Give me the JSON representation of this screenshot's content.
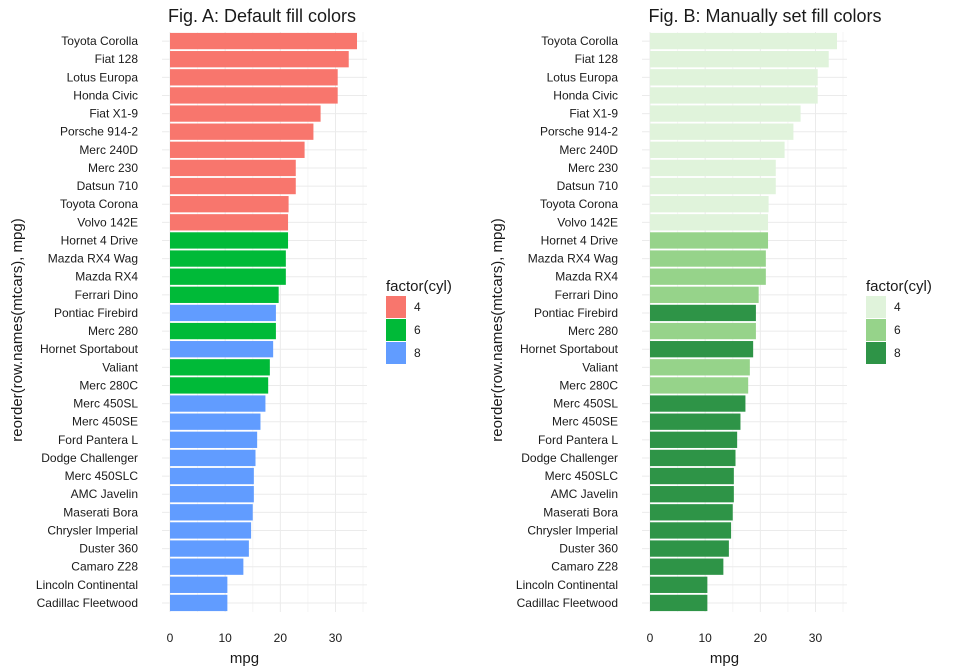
{
  "chart_data": [
    {
      "type": "bar",
      "orientation": "horizontal",
      "title": "Fig. A: Default fill colors",
      "xlabel": "mpg",
      "ylabel": "reorder(row.names(mtcars), mpg)",
      "xlim": [
        0,
        35
      ],
      "xticks": [
        0,
        10,
        20,
        30
      ],
      "legend": {
        "title": "factor(cyl)",
        "position": "right",
        "entries": [
          {
            "label": "4",
            "color": "#F8766D"
          },
          {
            "label": "6",
            "color": "#00BA38"
          },
          {
            "label": "8",
            "color": "#619CFF"
          }
        ]
      },
      "categories": [
        "Toyota Corolla",
        "Fiat 128",
        "Lotus Europa",
        "Honda Civic",
        "Fiat X1-9",
        "Porsche 914-2",
        "Merc 240D",
        "Merc 230",
        "Datsun 710",
        "Toyota Corona",
        "Volvo 142E",
        "Hornet 4 Drive",
        "Mazda RX4 Wag",
        "Mazda RX4",
        "Ferrari Dino",
        "Pontiac Firebird",
        "Merc 280",
        "Hornet Sportabout",
        "Valiant",
        "Merc 280C",
        "Merc 450SL",
        "Merc 450SE",
        "Ford Pantera L",
        "Dodge Challenger",
        "Merc 450SLC",
        "AMC Javelin",
        "Maserati Bora",
        "Chrysler Imperial",
        "Duster 360",
        "Camaro Z28",
        "Lincoln Continental",
        "Cadillac Fleetwood"
      ],
      "values": [
        33.9,
        32.4,
        30.4,
        30.4,
        27.3,
        26.0,
        24.4,
        22.8,
        22.8,
        21.5,
        21.4,
        21.4,
        21.0,
        21.0,
        19.7,
        19.2,
        19.2,
        18.7,
        18.1,
        17.8,
        17.3,
        16.4,
        15.8,
        15.5,
        15.2,
        15.2,
        15.0,
        14.7,
        14.3,
        13.3,
        10.4,
        10.4
      ],
      "groups": [
        "4",
        "4",
        "4",
        "4",
        "4",
        "4",
        "4",
        "4",
        "4",
        "4",
        "4",
        "6",
        "6",
        "6",
        "6",
        "8",
        "6",
        "8",
        "6",
        "6",
        "8",
        "8",
        "8",
        "8",
        "8",
        "8",
        "8",
        "8",
        "8",
        "8",
        "8",
        "8"
      ]
    },
    {
      "type": "bar",
      "orientation": "horizontal",
      "title": "Fig. B: Manually set fill colors",
      "xlabel": "mpg",
      "ylabel": "reorder(row.names(mtcars), mpg)",
      "xlim": [
        0,
        35
      ],
      "xticks": [
        0,
        10,
        20,
        30
      ],
      "legend": {
        "title": "factor(cyl)",
        "position": "right",
        "entries": [
          {
            "label": "4",
            "color": "#E0F3DB"
          },
          {
            "label": "6",
            "color": "#96D38A"
          },
          {
            "label": "8",
            "color": "#2E9447"
          }
        ]
      },
      "categories": [
        "Toyota Corolla",
        "Fiat 128",
        "Lotus Europa",
        "Honda Civic",
        "Fiat X1-9",
        "Porsche 914-2",
        "Merc 240D",
        "Merc 230",
        "Datsun 710",
        "Toyota Corona",
        "Volvo 142E",
        "Hornet 4 Drive",
        "Mazda RX4 Wag",
        "Mazda RX4",
        "Ferrari Dino",
        "Pontiac Firebird",
        "Merc 280",
        "Hornet Sportabout",
        "Valiant",
        "Merc 280C",
        "Merc 450SL",
        "Merc 450SE",
        "Ford Pantera L",
        "Dodge Challenger",
        "Merc 450SLC",
        "AMC Javelin",
        "Maserati Bora",
        "Chrysler Imperial",
        "Duster 360",
        "Camaro Z28",
        "Lincoln Continental",
        "Cadillac Fleetwood"
      ],
      "values": [
        33.9,
        32.4,
        30.4,
        30.4,
        27.3,
        26.0,
        24.4,
        22.8,
        22.8,
        21.5,
        21.4,
        21.4,
        21.0,
        21.0,
        19.7,
        19.2,
        19.2,
        18.7,
        18.1,
        17.8,
        17.3,
        16.4,
        15.8,
        15.5,
        15.2,
        15.2,
        15.0,
        14.7,
        14.3,
        13.3,
        10.4,
        10.4
      ],
      "groups": [
        "4",
        "4",
        "4",
        "4",
        "4",
        "4",
        "4",
        "4",
        "4",
        "4",
        "4",
        "6",
        "6",
        "6",
        "6",
        "8",
        "6",
        "8",
        "6",
        "6",
        "8",
        "8",
        "8",
        "8",
        "8",
        "8",
        "8",
        "8",
        "8",
        "8",
        "8",
        "8"
      ]
    }
  ]
}
